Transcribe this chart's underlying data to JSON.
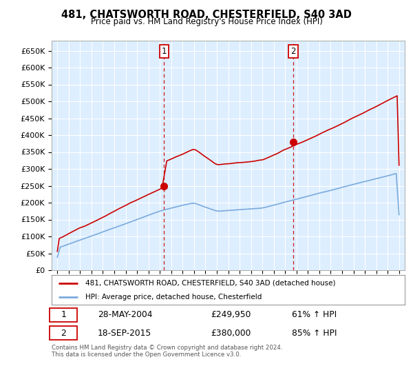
{
  "title": "481, CHATSWORTH ROAD, CHESTERFIELD, S40 3AD",
  "subtitle": "Price paid vs. HM Land Registry's House Price Index (HPI)",
  "ylabel_ticks": [
    "£0",
    "£50K",
    "£100K",
    "£150K",
    "£200K",
    "£250K",
    "£300K",
    "£350K",
    "£400K",
    "£450K",
    "£500K",
    "£550K",
    "£600K",
    "£650K"
  ],
  "ytick_values": [
    0,
    50000,
    100000,
    150000,
    200000,
    250000,
    300000,
    350000,
    400000,
    450000,
    500000,
    550000,
    600000,
    650000
  ],
  "ylim": [
    0,
    680000
  ],
  "xlim_min": 1994.5,
  "xlim_max": 2025.5,
  "sale1_year": 2004.38,
  "sale1_price": 249950,
  "sale1_date": "28-MAY-2004",
  "sale1_hpi": "61% ↑ HPI",
  "sale2_year": 2015.71,
  "sale2_price": 380000,
  "sale2_date": "18-SEP-2015",
  "sale2_hpi": "85% ↑ HPI",
  "legend_line1": "481, CHATSWORTH ROAD, CHESTERFIELD, S40 3AD (detached house)",
  "legend_line2": "HPI: Average price, detached house, Chesterfield",
  "footnote": "Contains HM Land Registry data © Crown copyright and database right 2024.\nThis data is licensed under the Open Government Licence v3.0.",
  "red_line_color": "#cc0000",
  "blue_line_color": "#7aaadd",
  "plot_bg_color": "#ddeeff",
  "grid_color": "#ffffff",
  "vline_color": "#cc0000"
}
